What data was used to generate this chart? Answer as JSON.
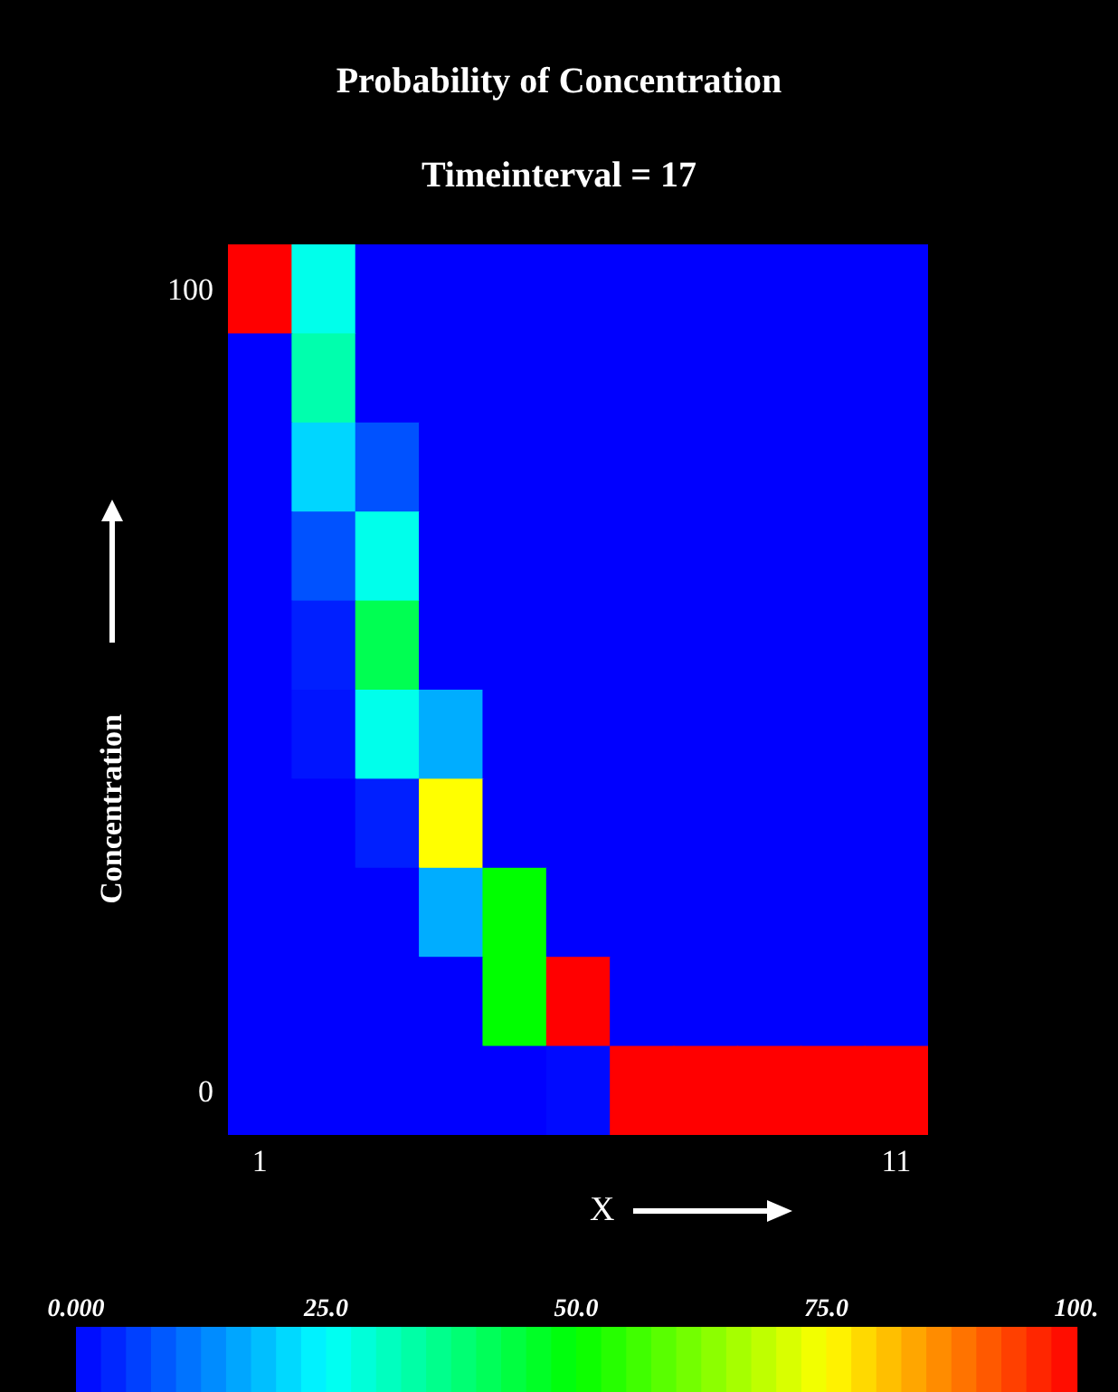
{
  "chart_data": {
    "type": "heatmap",
    "title": "Probability of Concentration",
    "subtitle": "Timeinterval = 17",
    "xlabel": "X",
    "ylabel": "Concentration",
    "categories": [
      "1",
      null,
      null,
      null,
      null,
      null,
      null,
      null,
      null,
      null,
      "11"
    ],
    "y_categories": [
      "100",
      null,
      null,
      null,
      null,
      null,
      null,
      null,
      null,
      "0"
    ],
    "cells": [
      [
        100,
        27,
        0,
        0,
        0,
        0,
        0,
        0,
        0,
        0,
        0
      ],
      [
        0,
        33,
        0,
        0,
        0,
        0,
        0,
        0,
        0,
        0,
        0
      ],
      [
        0,
        21,
        8,
        0,
        0,
        0,
        0,
        0,
        0,
        0,
        0
      ],
      [
        0,
        8,
        27,
        0,
        0,
        0,
        0,
        0,
        0,
        0,
        0
      ],
      [
        0,
        3,
        42,
        0,
        0,
        0,
        0,
        0,
        0,
        0,
        0
      ],
      [
        0,
        2,
        27,
        17,
        0,
        0,
        0,
        0,
        0,
        0,
        0
      ],
      [
        0,
        0,
        3,
        75,
        0,
        0,
        0,
        0,
        0,
        0,
        0
      ],
      [
        0,
        0,
        0,
        17,
        50,
        0,
        0,
        0,
        0,
        0,
        0
      ],
      [
        0,
        0,
        0,
        0,
        50,
        100,
        0,
        0,
        0,
        0,
        0
      ],
      [
        0,
        0,
        0,
        0,
        0,
        1,
        100,
        100,
        100,
        100,
        100
      ]
    ],
    "clim": [
      0,
      100
    ],
    "cticks": [
      {
        "value": 0,
        "label": "0.000"
      },
      {
        "value": 25,
        "label": "25.0"
      },
      {
        "value": 50,
        "label": "50.0"
      },
      {
        "value": 75,
        "label": "75.0"
      },
      {
        "value": 100,
        "label": "100."
      }
    ]
  }
}
